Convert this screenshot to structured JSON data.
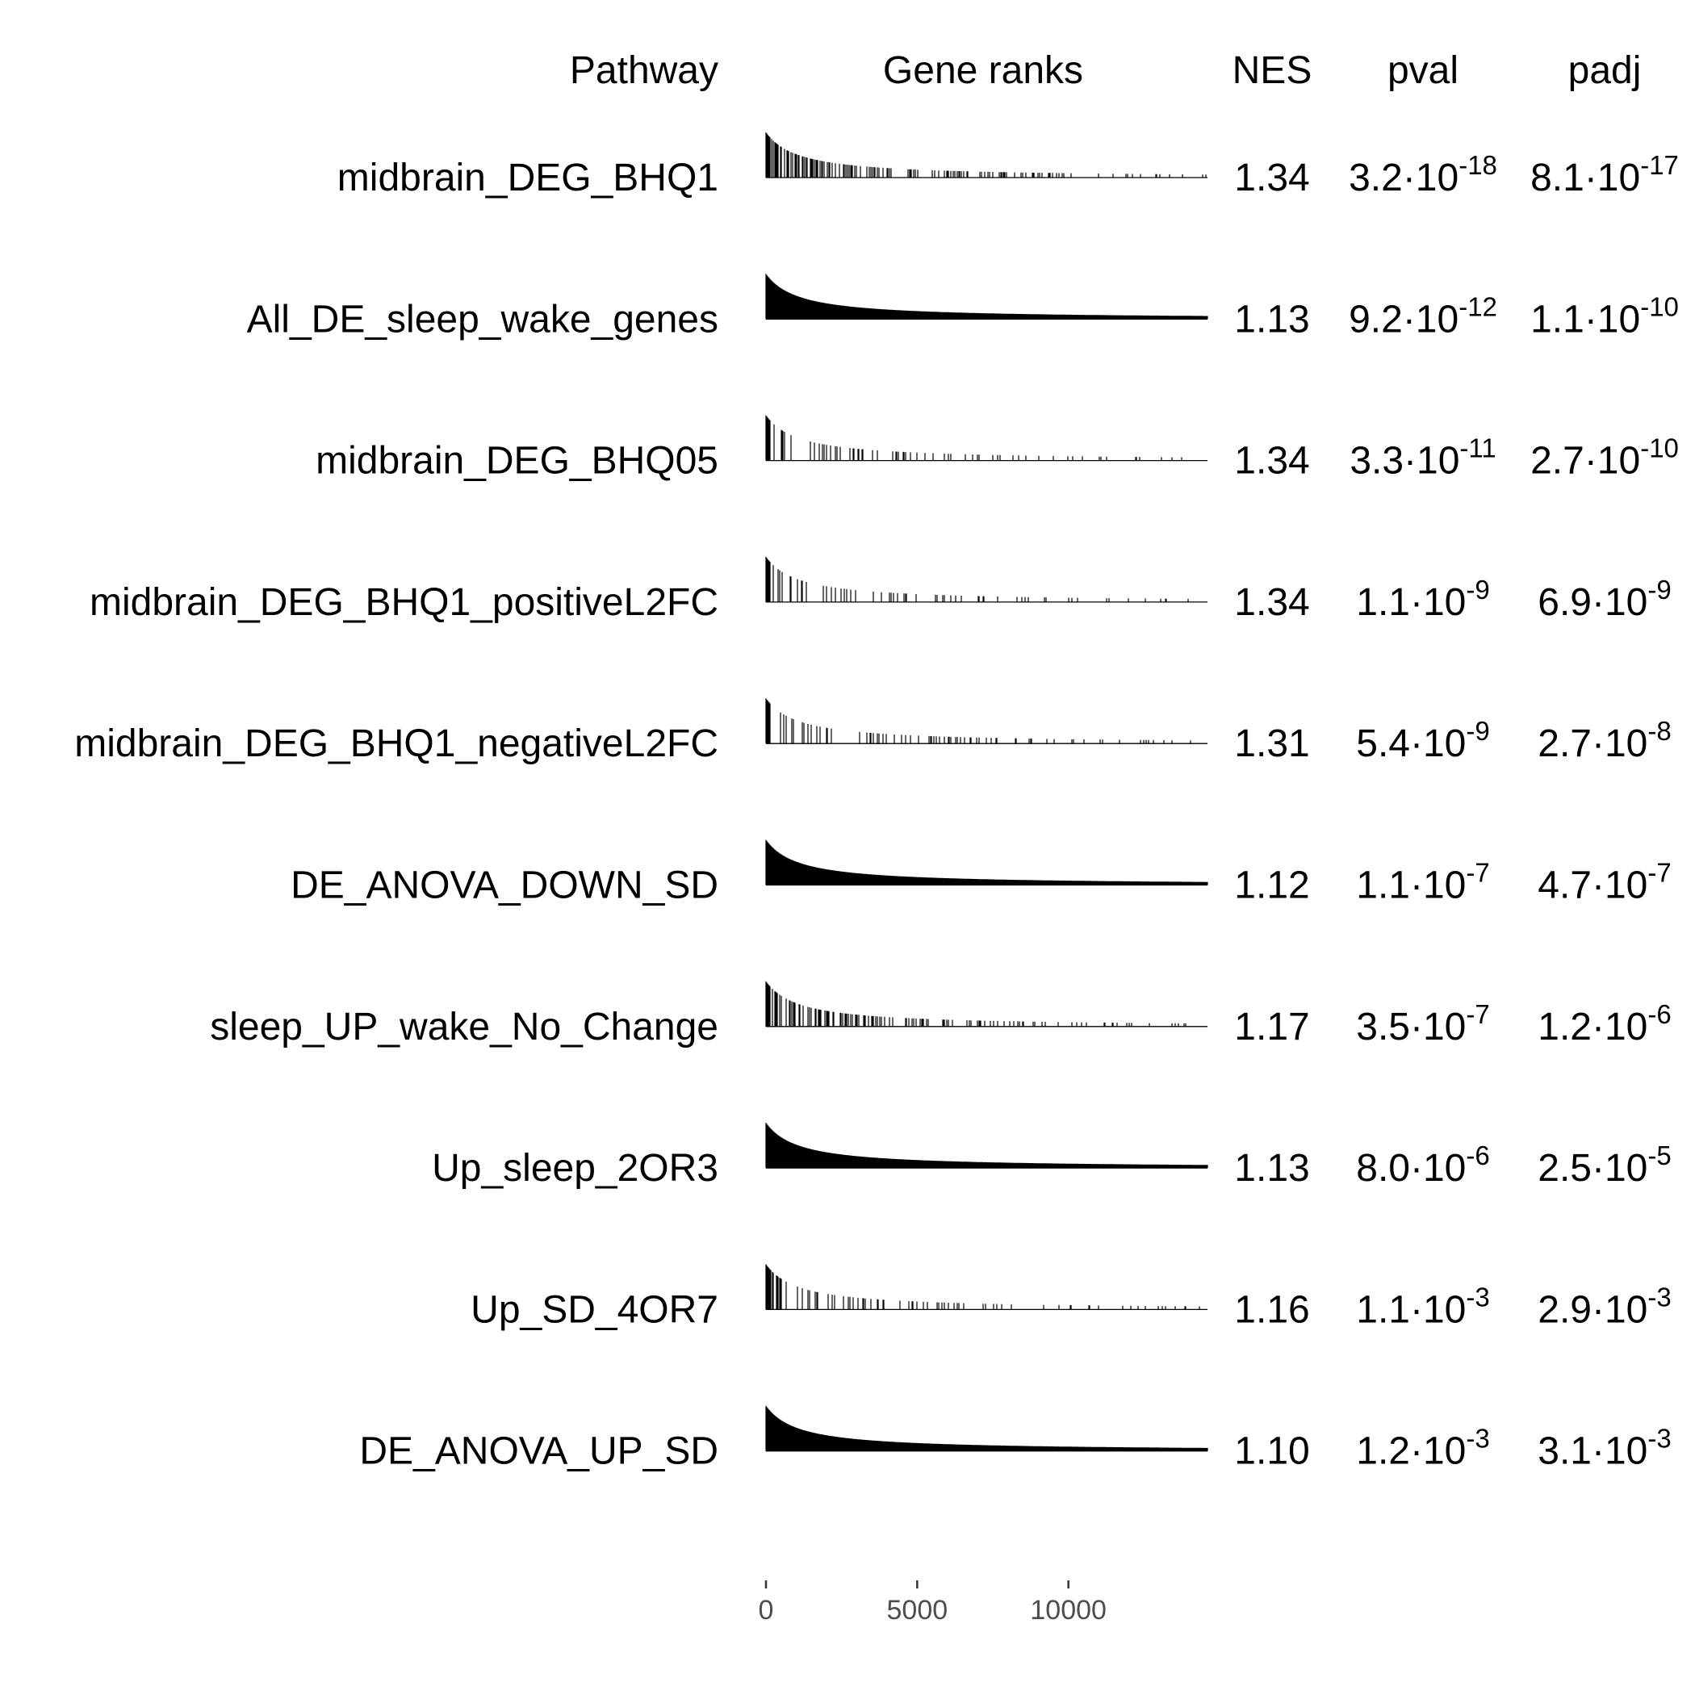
{
  "chart_data": {
    "type": "table",
    "headers": {
      "pathway": "Pathway",
      "gene_ranks": "Gene ranks",
      "nes": "NES",
      "pval": "pval",
      "padj": "padj"
    },
    "x_axis": {
      "range": [
        0,
        14600
      ],
      "ticks": [
        0,
        5000,
        10000
      ],
      "tick_labels": [
        "0",
        "5000",
        "10000"
      ]
    },
    "rows": [
      {
        "pathway": "midbrain_DEG_BHQ1",
        "nes": "1.34",
        "pval": {
          "mantissa": "3.2",
          "exponent": "-18"
        },
        "padj": {
          "mantissa": "8.1",
          "exponent": "-17"
        },
        "density": "medium"
      },
      {
        "pathway": "All_DE_sleep_wake_genes",
        "nes": "1.13",
        "pval": {
          "mantissa": "9.2",
          "exponent": "-12"
        },
        "padj": {
          "mantissa": "1.1",
          "exponent": "-10"
        },
        "density": "dense"
      },
      {
        "pathway": "midbrain_DEG_BHQ05",
        "nes": "1.34",
        "pval": {
          "mantissa": "3.3",
          "exponent": "-11"
        },
        "padj": {
          "mantissa": "2.7",
          "exponent": "-10"
        },
        "density": "sparse"
      },
      {
        "pathway": "midbrain_DEG_BHQ1_positiveL2FC",
        "nes": "1.34",
        "pval": {
          "mantissa": "1.1",
          "exponent": "-9"
        },
        "padj": {
          "mantissa": "6.9",
          "exponent": "-9"
        },
        "density": "sparse"
      },
      {
        "pathway": "midbrain_DEG_BHQ1_negativeL2FC",
        "nes": "1.31",
        "pval": {
          "mantissa": "5.4",
          "exponent": "-9"
        },
        "padj": {
          "mantissa": "2.7",
          "exponent": "-8"
        },
        "density": "sparse"
      },
      {
        "pathway": "DE_ANOVA_DOWN_SD",
        "nes": "1.12",
        "pval": {
          "mantissa": "1.1",
          "exponent": "-7"
        },
        "padj": {
          "mantissa": "4.7",
          "exponent": "-7"
        },
        "density": "dense"
      },
      {
        "pathway": "sleep_UP_wake_No_Change",
        "nes": "1.17",
        "pval": {
          "mantissa": "3.5",
          "exponent": "-7"
        },
        "padj": {
          "mantissa": "1.2",
          "exponent": "-6"
        },
        "density": "medium"
      },
      {
        "pathway": "Up_sleep_2OR3",
        "nes": "1.13",
        "pval": {
          "mantissa": "8.0",
          "exponent": "-6"
        },
        "padj": {
          "mantissa": "2.5",
          "exponent": "-5"
        },
        "density": "dense"
      },
      {
        "pathway": "Up_SD_4OR7",
        "nes": "1.16",
        "pval": {
          "mantissa": "1.1",
          "exponent": "-3"
        },
        "padj": {
          "mantissa": "2.9",
          "exponent": "-3"
        },
        "density": "sparse"
      },
      {
        "pathway": "DE_ANOVA_UP_SD",
        "nes": "1.10",
        "pval": {
          "mantissa": "1.2",
          "exponent": "-3"
        },
        "padj": {
          "mantissa": "3.1",
          "exponent": "-3"
        },
        "density": "dense"
      }
    ]
  }
}
